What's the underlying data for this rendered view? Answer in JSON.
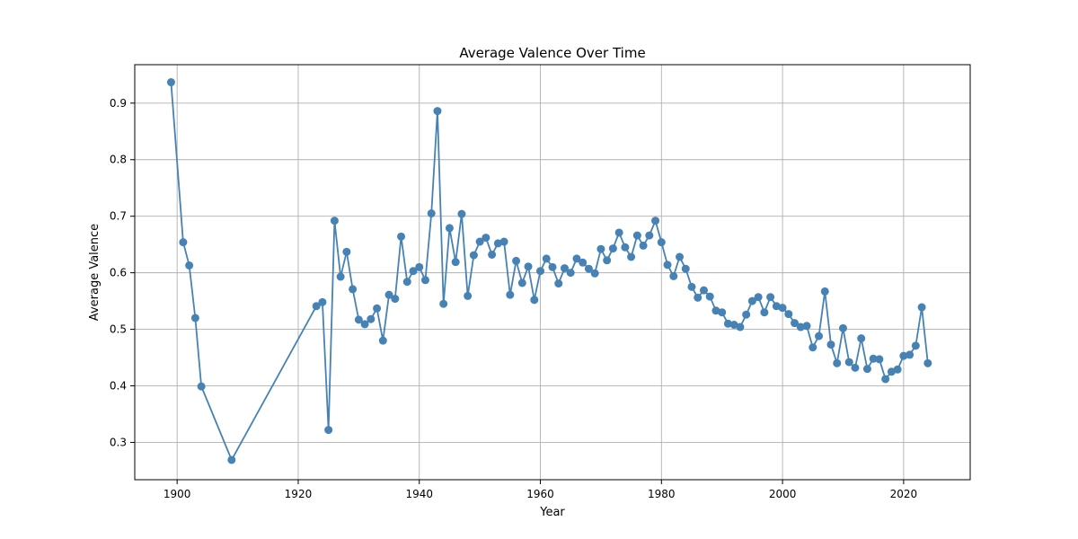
{
  "chart_data": {
    "type": "line",
    "title": "Average Valence Over Time",
    "xlabel": "Year",
    "ylabel": "Average Valence",
    "xlim": [
      1893,
      2031
    ],
    "ylim": [
      0.234,
      0.968
    ],
    "xticks": [
      1900,
      1920,
      1940,
      1960,
      1980,
      2000,
      2020
    ],
    "yticks": [
      0.3,
      0.4,
      0.5,
      0.6,
      0.7,
      0.8,
      0.9
    ],
    "grid": true,
    "series": [
      {
        "color": "#4682b4",
        "marker": "circle",
        "x": [
          1899,
          1901,
          1902,
          1903,
          1904,
          1909,
          1923,
          1924,
          1925,
          1926,
          1927,
          1928,
          1929,
          1930,
          1931,
          1932,
          1933,
          1934,
          1935,
          1936,
          1937,
          1938,
          1939,
          1940,
          1941,
          1942,
          1943,
          1944,
          1945,
          1946,
          1947,
          1948,
          1949,
          1950,
          1951,
          1952,
          1953,
          1954,
          1955,
          1956,
          1957,
          1958,
          1959,
          1960,
          1961,
          1962,
          1963,
          1964,
          1965,
          1966,
          1967,
          1968,
          1969,
          1970,
          1971,
          1972,
          1973,
          1974,
          1975,
          1976,
          1977,
          1978,
          1979,
          1980,
          1981,
          1982,
          1983,
          1984,
          1985,
          1986,
          1987,
          1988,
          1989,
          1990,
          1991,
          1992,
          1993,
          1994,
          1995,
          1996,
          1997,
          1998,
          1999,
          2000,
          2001,
          2002,
          2003,
          2004,
          2005,
          2006,
          2007,
          2008,
          2009,
          2010,
          2011,
          2012,
          2013,
          2014,
          2015,
          2016,
          2017,
          2018,
          2019,
          2020,
          2021,
          2022,
          2023,
          2024
        ],
        "y": [
          0.937,
          0.654,
          0.613,
          0.52,
          0.399,
          0.269,
          0.541,
          0.548,
          0.322,
          0.692,
          0.593,
          0.637,
          0.571,
          0.517,
          0.509,
          0.518,
          0.537,
          0.48,
          0.561,
          0.554,
          0.664,
          0.584,
          0.603,
          0.61,
          0.587,
          0.705,
          0.886,
          0.545,
          0.679,
          0.619,
          0.704,
          0.559,
          0.631,
          0.655,
          0.662,
          0.632,
          0.652,
          0.655,
          0.561,
          0.621,
          0.582,
          0.611,
          0.552,
          0.603,
          0.625,
          0.61,
          0.581,
          0.608,
          0.6,
          0.625,
          0.618,
          0.607,
          0.599,
          0.642,
          0.622,
          0.643,
          0.671,
          0.645,
          0.628,
          0.666,
          0.648,
          0.666,
          0.692,
          0.654,
          0.614,
          0.594,
          0.628,
          0.607,
          0.575,
          0.556,
          0.569,
          0.558,
          0.533,
          0.53,
          0.51,
          0.508,
          0.504,
          0.526,
          0.55,
          0.557,
          0.53,
          0.557,
          0.541,
          0.538,
          0.527,
          0.511,
          0.504,
          0.506,
          0.468,
          0.488,
          0.567,
          0.473,
          0.44,
          0.502,
          0.442,
          0.432,
          0.484,
          0.43,
          0.448,
          0.447,
          0.412,
          0.425,
          0.429,
          0.453,
          0.455,
          0.471,
          0.539,
          0.44
        ]
      }
    ]
  }
}
